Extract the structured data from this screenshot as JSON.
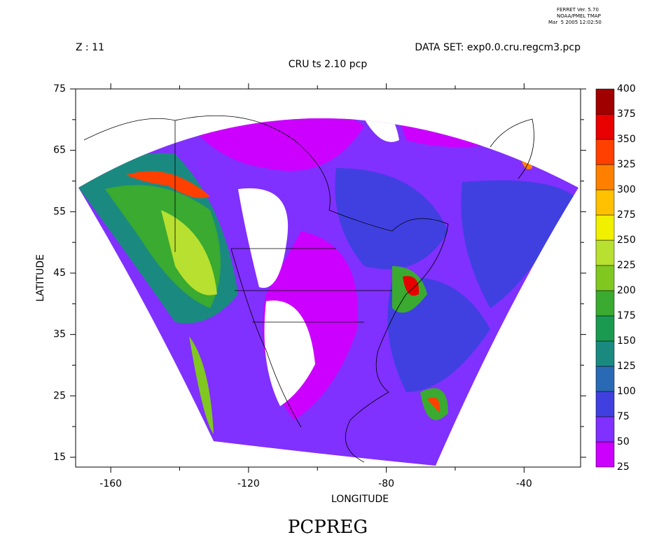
{
  "header": {
    "ferret_version": "FERRET Ver. 5.70",
    "ferret_org": "NOAA/PMEL TMAP",
    "ferret_date": "Mar  5 2005 12:02:50",
    "z_label": "Z : 11",
    "dataset": "DATA SET: exp0.0.cru.regcm3.pcp",
    "subtitle": "CRU ts 2.10 pcp"
  },
  "map": {
    "x_label": "LONGITUDE",
    "y_label": "LATITUDE",
    "xlim": [
      -170.2,
      -23.6
    ],
    "ylim": [
      13.4,
      75
    ],
    "xticks": [
      -160,
      -120,
      -80,
      -40
    ],
    "yticks": [
      15,
      25,
      35,
      45,
      55,
      65,
      75
    ]
  },
  "colorbar": {
    "levels": [
      25,
      50,
      75,
      100,
      125,
      150,
      175,
      200,
      225,
      250,
      275,
      300,
      325,
      350,
      375,
      400
    ],
    "colors": [
      "#cc00ff",
      "#8030ff",
      "#4040e0",
      "#2a6ab5",
      "#1a8a80",
      "#1a9a50",
      "#3aaa30",
      "#80c820",
      "#b8e030",
      "#f0f000",
      "#ffc000",
      "#ff8000",
      "#ff4000",
      "#e80000",
      "#a00000"
    ]
  },
  "footer": {
    "title": "PCPREG"
  }
}
